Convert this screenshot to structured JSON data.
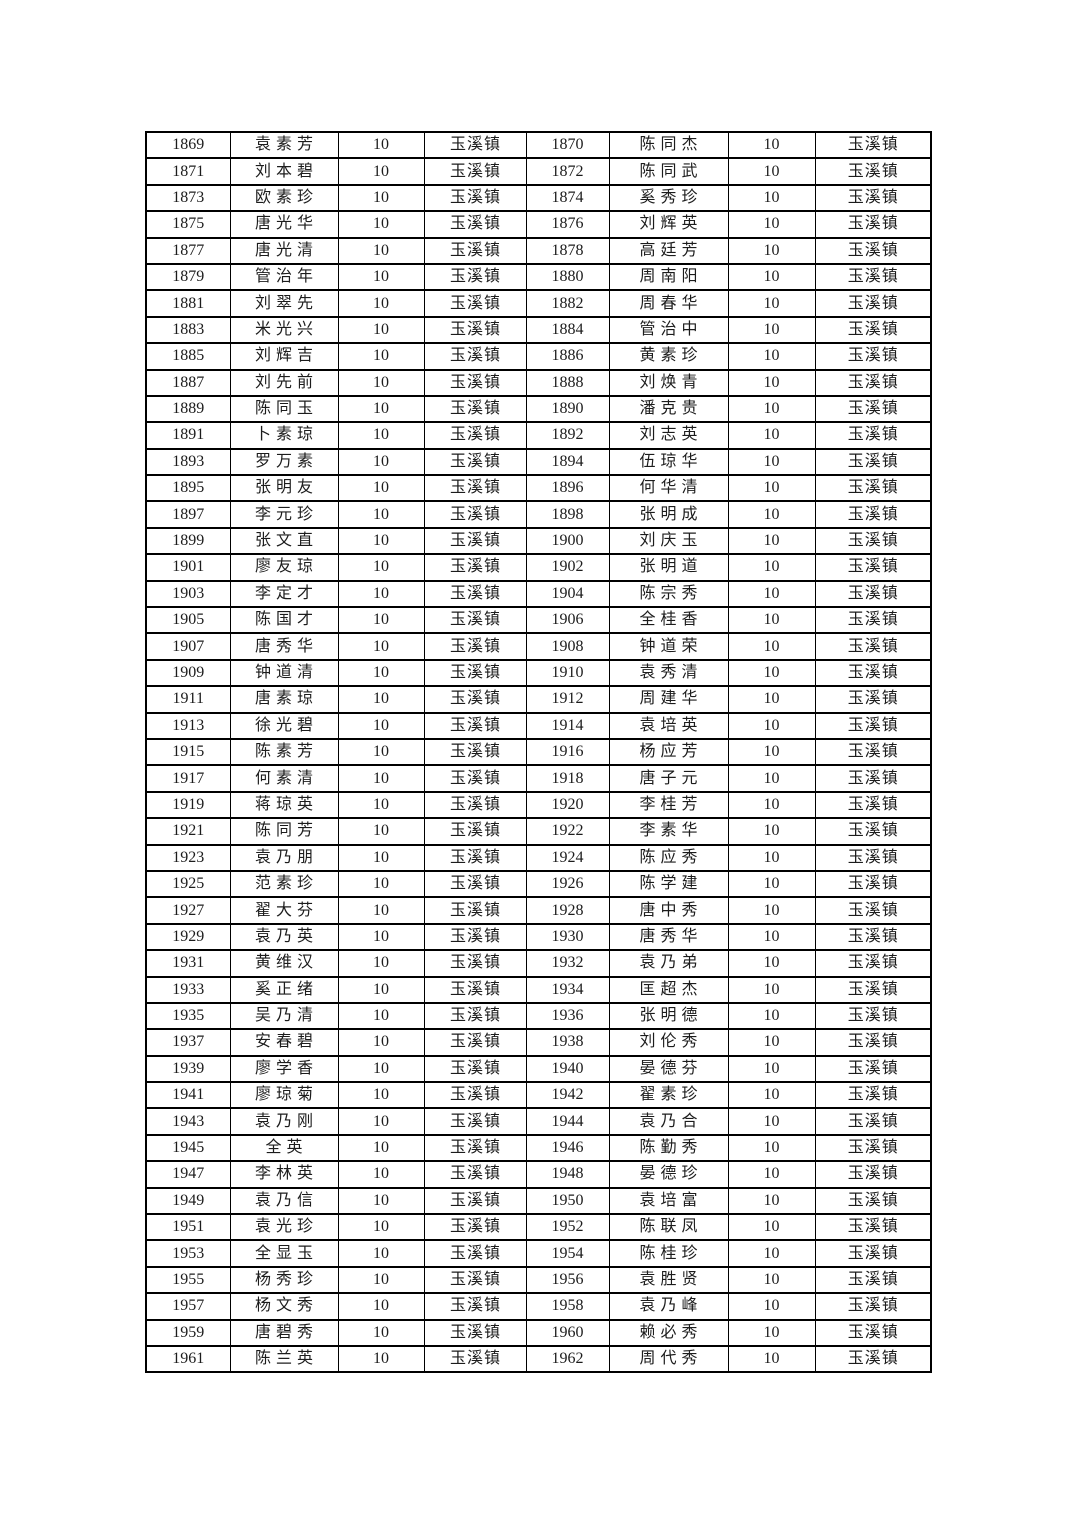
{
  "page": {
    "background_color": "#ffffff",
    "text_color": "#1c1c1c",
    "border_color": "#000000"
  },
  "table": {
    "description": "two-up roster list: serial number, name, amount, town — repeated twice per row",
    "amount_value": "10",
    "town_value": "玉溪镇",
    "column_types": [
      "serial",
      "name",
      "amount",
      "town",
      "serial",
      "name",
      "amount",
      "town"
    ],
    "rows": [
      [
        "1869",
        "袁素芳",
        "10",
        "玉溪镇",
        "1870",
        "陈同杰",
        "10",
        "玉溪镇"
      ],
      [
        "1871",
        "刘本碧",
        "10",
        "玉溪镇",
        "1872",
        "陈同武",
        "10",
        "玉溪镇"
      ],
      [
        "1873",
        "欧素珍",
        "10",
        "玉溪镇",
        "1874",
        "奚秀珍",
        "10",
        "玉溪镇"
      ],
      [
        "1875",
        "唐光华",
        "10",
        "玉溪镇",
        "1876",
        "刘辉英",
        "10",
        "玉溪镇"
      ],
      [
        "1877",
        "唐光清",
        "10",
        "玉溪镇",
        "1878",
        "高廷芳",
        "10",
        "玉溪镇"
      ],
      [
        "1879",
        "管治年",
        "10",
        "玉溪镇",
        "1880",
        "周南阳",
        "10",
        "玉溪镇"
      ],
      [
        "1881",
        "刘翠先",
        "10",
        "玉溪镇",
        "1882",
        "周春华",
        "10",
        "玉溪镇"
      ],
      [
        "1883",
        "米光兴",
        "10",
        "玉溪镇",
        "1884",
        "管治中",
        "10",
        "玉溪镇"
      ],
      [
        "1885",
        "刘辉吉",
        "10",
        "玉溪镇",
        "1886",
        "黄素珍",
        "10",
        "玉溪镇"
      ],
      [
        "1887",
        "刘先前",
        "10",
        "玉溪镇",
        "1888",
        "刘焕青",
        "10",
        "玉溪镇"
      ],
      [
        "1889",
        "陈同玉",
        "10",
        "玉溪镇",
        "1890",
        "潘克贵",
        "10",
        "玉溪镇"
      ],
      [
        "1891",
        "卜素琼",
        "10",
        "玉溪镇",
        "1892",
        "刘志英",
        "10",
        "玉溪镇"
      ],
      [
        "1893",
        "罗万素",
        "10",
        "玉溪镇",
        "1894",
        "伍琼华",
        "10",
        "玉溪镇"
      ],
      [
        "1895",
        "张明友",
        "10",
        "玉溪镇",
        "1896",
        "何华清",
        "10",
        "玉溪镇"
      ],
      [
        "1897",
        "李元珍",
        "10",
        "玉溪镇",
        "1898",
        "张明成",
        "10",
        "玉溪镇"
      ],
      [
        "1899",
        "张文直",
        "10",
        "玉溪镇",
        "1900",
        "刘庆玉",
        "10",
        "玉溪镇"
      ],
      [
        "1901",
        "廖友琼",
        "10",
        "玉溪镇",
        "1902",
        "张明道",
        "10",
        "玉溪镇"
      ],
      [
        "1903",
        "李定才",
        "10",
        "玉溪镇",
        "1904",
        "陈宗秀",
        "10",
        "玉溪镇"
      ],
      [
        "1905",
        "陈国才",
        "10",
        "玉溪镇",
        "1906",
        "全桂香",
        "10",
        "玉溪镇"
      ],
      [
        "1907",
        "唐秀华",
        "10",
        "玉溪镇",
        "1908",
        "钟道荣",
        "10",
        "玉溪镇"
      ],
      [
        "1909",
        "钟道清",
        "10",
        "玉溪镇",
        "1910",
        "袁秀清",
        "10",
        "玉溪镇"
      ],
      [
        "1911",
        "唐素琼",
        "10",
        "玉溪镇",
        "1912",
        "周建华",
        "10",
        "玉溪镇"
      ],
      [
        "1913",
        "徐光碧",
        "10",
        "玉溪镇",
        "1914",
        "袁培英",
        "10",
        "玉溪镇"
      ],
      [
        "1915",
        "陈素芳",
        "10",
        "玉溪镇",
        "1916",
        "杨应芳",
        "10",
        "玉溪镇"
      ],
      [
        "1917",
        "何素清",
        "10",
        "玉溪镇",
        "1918",
        "唐子元",
        "10",
        "玉溪镇"
      ],
      [
        "1919",
        "蒋琼英",
        "10",
        "玉溪镇",
        "1920",
        "李桂芳",
        "10",
        "玉溪镇"
      ],
      [
        "1921",
        "陈同芳",
        "10",
        "玉溪镇",
        "1922",
        "李素华",
        "10",
        "玉溪镇"
      ],
      [
        "1923",
        "袁乃朋",
        "10",
        "玉溪镇",
        "1924",
        "陈应秀",
        "10",
        "玉溪镇"
      ],
      [
        "1925",
        "范素珍",
        "10",
        "玉溪镇",
        "1926",
        "陈学建",
        "10",
        "玉溪镇"
      ],
      [
        "1927",
        "翟大芬",
        "10",
        "玉溪镇",
        "1928",
        "唐中秀",
        "10",
        "玉溪镇"
      ],
      [
        "1929",
        "袁乃英",
        "10",
        "玉溪镇",
        "1930",
        "唐秀华",
        "10",
        "玉溪镇"
      ],
      [
        "1931",
        "黄维汉",
        "10",
        "玉溪镇",
        "1932",
        "袁乃弟",
        "10",
        "玉溪镇"
      ],
      [
        "1933",
        "奚正绪",
        "10",
        "玉溪镇",
        "1934",
        "匡超杰",
        "10",
        "玉溪镇"
      ],
      [
        "1935",
        "吴乃清",
        "10",
        "玉溪镇",
        "1936",
        "张明德",
        "10",
        "玉溪镇"
      ],
      [
        "1937",
        "安春碧",
        "10",
        "玉溪镇",
        "1938",
        "刘伦秀",
        "10",
        "玉溪镇"
      ],
      [
        "1939",
        "廖学香",
        "10",
        "玉溪镇",
        "1940",
        "晏德芬",
        "10",
        "玉溪镇"
      ],
      [
        "1941",
        "廖琼菊",
        "10",
        "玉溪镇",
        "1942",
        "翟素珍",
        "10",
        "玉溪镇"
      ],
      [
        "1943",
        "袁乃刚",
        "10",
        "玉溪镇",
        "1944",
        "袁乃合",
        "10",
        "玉溪镇"
      ],
      [
        "1945",
        "全英",
        "10",
        "玉溪镇",
        "1946",
        "陈勤秀",
        "10",
        "玉溪镇"
      ],
      [
        "1947",
        "李林英",
        "10",
        "玉溪镇",
        "1948",
        "晏德珍",
        "10",
        "玉溪镇"
      ],
      [
        "1949",
        "袁乃信",
        "10",
        "玉溪镇",
        "1950",
        "袁培富",
        "10",
        "玉溪镇"
      ],
      [
        "1951",
        "袁光珍",
        "10",
        "玉溪镇",
        "1952",
        "陈联凤",
        "10",
        "玉溪镇"
      ],
      [
        "1953",
        "全显玉",
        "10",
        "玉溪镇",
        "1954",
        "陈桂珍",
        "10",
        "玉溪镇"
      ],
      [
        "1955",
        "杨秀珍",
        "10",
        "玉溪镇",
        "1956",
        "袁胜贤",
        "10",
        "玉溪镇"
      ],
      [
        "1957",
        "杨文秀",
        "10",
        "玉溪镇",
        "1958",
        "袁乃峰",
        "10",
        "玉溪镇"
      ],
      [
        "1959",
        "唐碧秀",
        "10",
        "玉溪镇",
        "1960",
        "赖必秀",
        "10",
        "玉溪镇"
      ],
      [
        "1961",
        "陈兰英",
        "10",
        "玉溪镇",
        "1962",
        "周代秀",
        "10",
        "玉溪镇"
      ]
    ]
  }
}
